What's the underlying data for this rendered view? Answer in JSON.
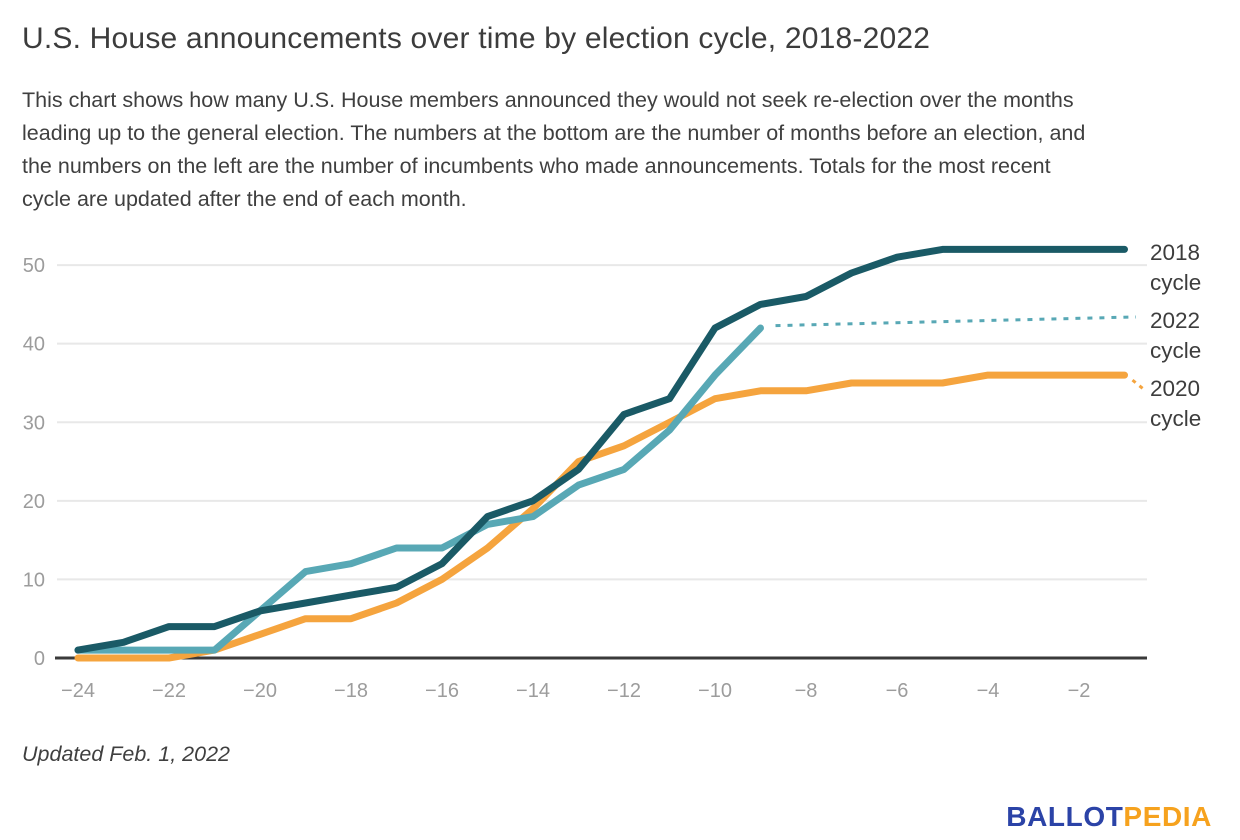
{
  "header": {
    "title": "U.S. House announcements over time by election cycle, 2018-2022",
    "description_lines": [
      "This chart shows how many U.S. House members announced they would not seek re-election over the months",
      "leading up to the general election. The numbers at the bottom are the number of months before an election, and",
      "the numbers on the left are the number of incumbents who made announcements. Totals for the most recent",
      "cycle are updated after the end of each month."
    ]
  },
  "footer": {
    "updated": "Updated Feb. 1, 2022",
    "logo_part1": "BALLOT",
    "logo_part2": "PEDIA"
  },
  "colors": {
    "series_2018": "#1a5a66",
    "series_2022": "#58a8b5",
    "series_2020": "#f5a43e",
    "gridline": "#e8e8e8",
    "axis": "#3a3a3a",
    "tick_label": "#9c9c9c",
    "text": "#3c3c3c",
    "logo_blue": "#2b43a7",
    "logo_orange": "#f6a21e"
  },
  "chart_data": {
    "type": "line",
    "months": [
      -24,
      -23,
      -22,
      -21,
      -20,
      -19,
      -18,
      -17,
      -16,
      -15,
      -14,
      -13,
      -12,
      -11,
      -10,
      -9,
      -8,
      -7,
      -6,
      -5,
      -4,
      -3,
      -2,
      -1
    ],
    "xticks": [
      -24,
      -22,
      -20,
      -18,
      -16,
      -14,
      -12,
      -10,
      -8,
      -6,
      -4,
      -2
    ],
    "xtick_labels": [
      "−24",
      "−22",
      "−20",
      "−18",
      "−16",
      "−14",
      "−12",
      "−10",
      "−8",
      "−6",
      "−4",
      "−2"
    ],
    "yticks": [
      0,
      10,
      20,
      30,
      40,
      50
    ],
    "ytick_labels": [
      "0",
      "10",
      "20",
      "30",
      "40",
      "50"
    ],
    "ylim": [
      0,
      55
    ],
    "xlim": [
      -24.5,
      -0.7
    ],
    "grid": "horizontal-only",
    "legend_position": "right-of-lines",
    "series": [
      {
        "name": "2018 cycle",
        "label_line1": "2018",
        "label_line2": "cycle",
        "color": "#1a5a66",
        "values": [
          1,
          2,
          4,
          4,
          6,
          7,
          8,
          9,
          12,
          18,
          20,
          24,
          31,
          33,
          42,
          45,
          46,
          49,
          51,
          52,
          52,
          52,
          52,
          52
        ],
        "final_total": 52
      },
      {
        "name": "2022 cycle",
        "label_line1": "2022",
        "label_line2": "cycle",
        "color": "#58a8b5",
        "values": [
          1,
          1,
          1,
          1,
          6,
          11,
          12,
          14,
          14,
          17,
          18,
          22,
          24,
          29,
          36,
          42
        ],
        "last_month": -9,
        "final_total": 42,
        "projection": {
          "style": "dashed",
          "from_month": -9,
          "from_value": 42.3,
          "to_value": 43.4
        }
      },
      {
        "name": "2020 cycle",
        "label_line1": "2020",
        "label_line2": "cycle",
        "color": "#f5a43e",
        "values": [
          0,
          0,
          0,
          1,
          3,
          5,
          5,
          7,
          10,
          14,
          19,
          25,
          27,
          30,
          33,
          34,
          34,
          35,
          35,
          35,
          36,
          36,
          36,
          36
        ],
        "final_total": 36,
        "leader": {
          "style": "dashed"
        }
      }
    ]
  }
}
